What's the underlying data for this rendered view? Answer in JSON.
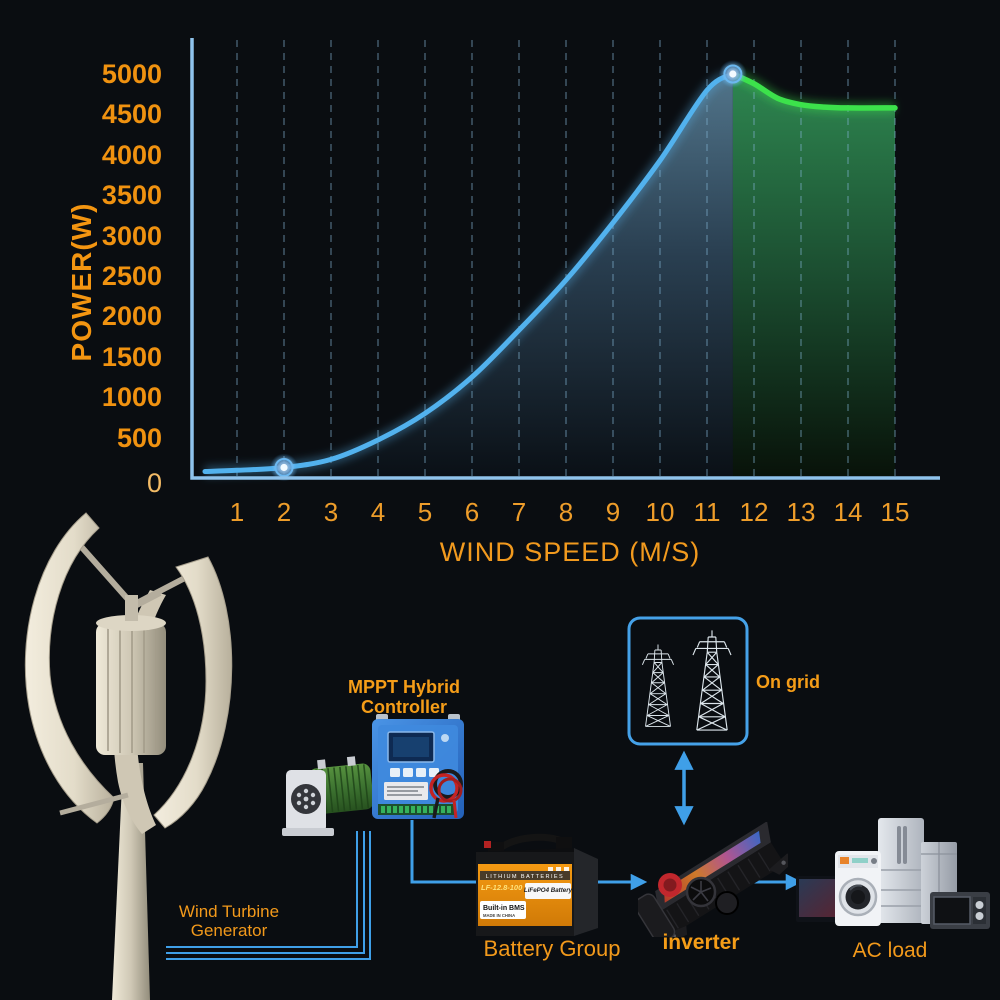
{
  "colors": {
    "accent_orange": "#f2991b",
    "wire_blue": "#3f9fe8",
    "curve_blue": "#52b2ee",
    "curve_green": "#3ce24b",
    "grid_box_border": "#45a1e8"
  },
  "chart_data": {
    "type": "area",
    "title": "",
    "xlabel": "WIND SPEED (M/S)",
    "ylabel": "POWER(W)",
    "xlim": [
      0,
      15
    ],
    "ylim": [
      0,
      5000
    ],
    "grid": "vertical-dashed",
    "legend": false,
    "xticks": [
      1,
      2,
      3,
      4,
      5,
      6,
      7,
      8,
      9,
      10,
      11,
      12,
      13,
      14,
      15
    ],
    "yticks": [
      5000,
      4500,
      4000,
      3500,
      3000,
      2500,
      2000,
      1500,
      1000,
      500,
      0
    ],
    "series": [
      {
        "name": "power-rising",
        "color": "#52b2ee",
        "x": [
          0.32,
          1,
          2,
          3,
          4,
          5,
          6,
          7,
          8,
          9,
          10,
          11,
          11.55
        ],
        "y": [
          80,
          95,
          130,
          230,
          470,
          800,
          1250,
          1830,
          2450,
          3160,
          3930,
          4800,
          5000
        ]
      },
      {
        "name": "power-regulated",
        "color": "#3ce24b",
        "x": [
          11.55,
          12,
          12.5,
          13,
          13.5,
          14,
          15
        ],
        "y": [
          5000,
          4880,
          4700,
          4620,
          4590,
          4580,
          4580
        ]
      }
    ],
    "markers": [
      {
        "x": 2,
        "y": 130
      },
      {
        "x": 11.55,
        "y": 5000
      }
    ]
  },
  "diagram": {
    "turbine_label_line1": "Wind Turbine",
    "turbine_label_line2": "Generator",
    "controller_label_line1": "MPPT Hybrid",
    "controller_label_line2": "Controller",
    "on_grid_label": "On grid",
    "battery_label": "Battery Group",
    "inverter_label": "inverter",
    "ac_load_label": "AC load",
    "battery_sticker": {
      "strip": "LITHIUM BATTERIES",
      "model": "LF-12.8-100",
      "type": "LiFePO4 Battery",
      "bms": "Built-in BMS",
      "origin": "MADE IN CHINA"
    }
  }
}
